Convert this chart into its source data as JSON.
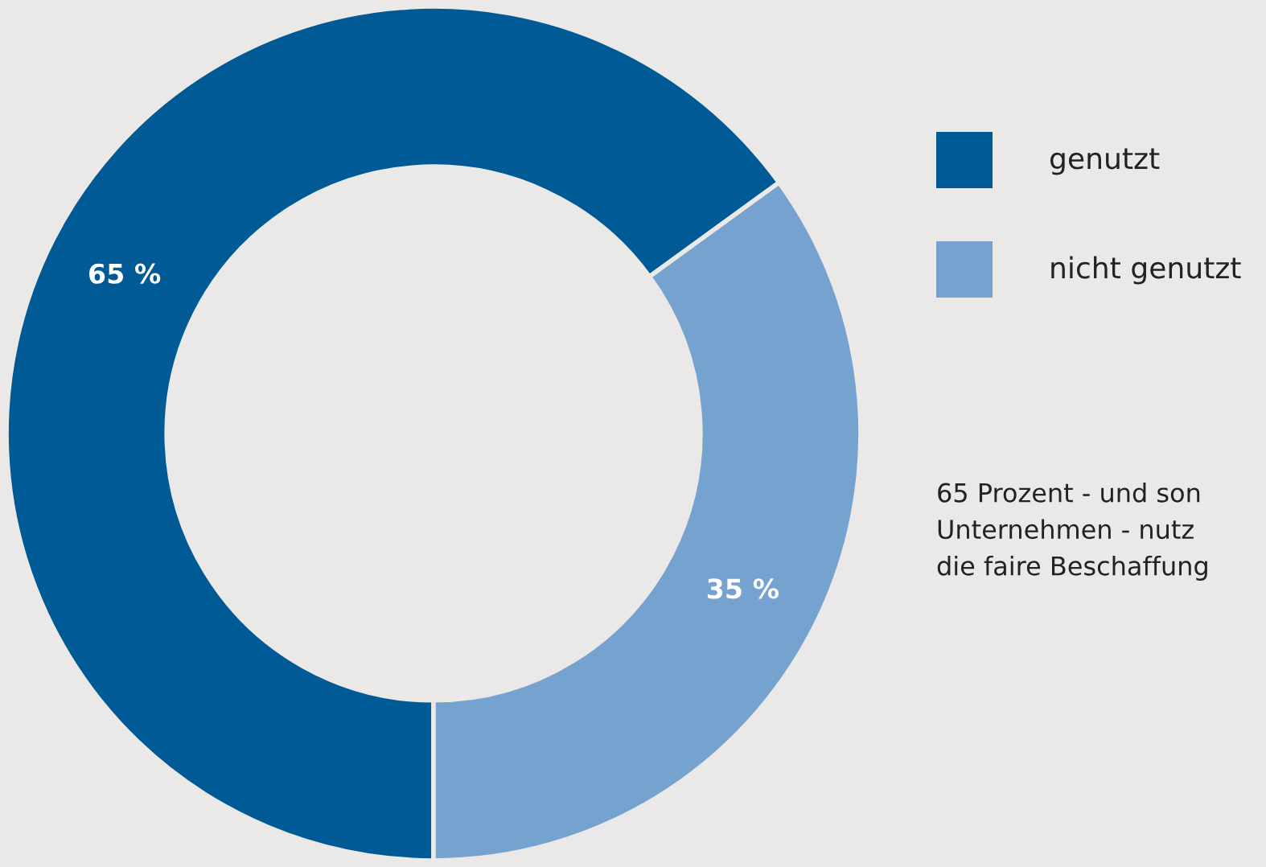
{
  "chart_data": {
    "type": "donut",
    "categories": [
      "genutzt",
      "nicht genutzt"
    ],
    "values": [
      65,
      35
    ],
    "colors": [
      "#005a96",
      "#76a2cf"
    ],
    "value_labels": [
      "65 %",
      "35 %"
    ],
    "legend": "right",
    "annotations": [
      "65 Prozent - und son\nUnternehmen - nutz\ndie faire Beschaffung"
    ]
  }
}
